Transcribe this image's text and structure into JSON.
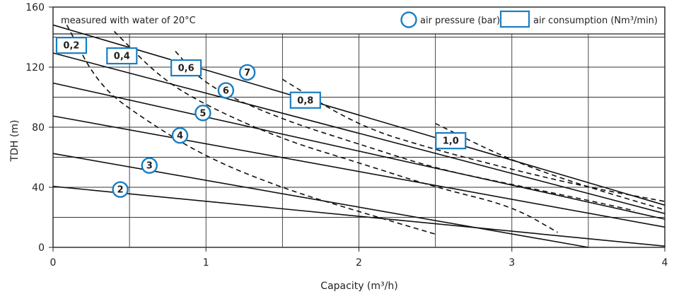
{
  "chart_data": {
    "type": "line",
    "note": "measured with water of 20°C",
    "xlabel": "Capacity (m³/h)",
    "ylabel": "TDH (m)",
    "xlim": [
      0,
      4
    ],
    "ylim": [
      0,
      160
    ],
    "xticks": [
      "0",
      "1",
      "2",
      "3",
      "4"
    ],
    "yticks": [
      "0",
      "40",
      "80",
      "120",
      "160"
    ],
    "grid": true,
    "legend": [
      {
        "shape": "circle",
        "label": "air pressure (bar)"
      },
      {
        "shape": "box",
        "label": "air consumption (Nm³/min)"
      }
    ],
    "series_pressure": [
      {
        "label": "2",
        "x": [
          0,
          4.0
        ],
        "y": [
          40.6,
          0.8
        ],
        "label_at": [
          0.44,
          38.5
        ]
      },
      {
        "label": "3",
        "x": [
          0,
          3.5
        ],
        "y": [
          62.5,
          0
        ],
        "label_at": [
          0.63,
          54.5
        ]
      },
      {
        "label": "4",
        "x": [
          0,
          4.0
        ],
        "y": [
          87.5,
          13.5
        ],
        "label_at": [
          0.83,
          74.5
        ]
      },
      {
        "label": "5",
        "x": [
          0,
          4.0
        ],
        "y": [
          109.4,
          18.8
        ],
        "label_at": [
          0.98,
          89.5
        ]
      },
      {
        "label": "6",
        "x": [
          0,
          4.0
        ],
        "y": [
          129.4,
          22.5
        ],
        "label_at": [
          1.13,
          104.5
        ]
      },
      {
        "label": "7",
        "x": [
          0,
          4.0
        ],
        "y": [
          148.1,
          28.1
        ],
        "label_at": [
          1.27,
          116.5
        ]
      }
    ],
    "series_air": [
      {
        "label": "0,2",
        "x": [
          0.09,
          0.3,
          0.6,
          1.0,
          1.5,
          2.0,
          2.5
        ],
        "y": [
          148.1,
          107.5,
          85.0,
          60.0,
          39.4,
          23.8,
          8.8
        ],
        "label_at": [
          0.12,
          134.5
        ]
      },
      {
        "label": "0,4",
        "x": [
          0.4,
          0.7,
          1.0,
          1.5,
          2.0,
          2.5,
          3.0,
          3.3
        ],
        "y": [
          143.8,
          113.1,
          94.4,
          71.9,
          56.3,
          40.0,
          27.5,
          10.0
        ],
        "label_at": [
          0.45,
          127.5
        ]
      },
      {
        "label": "0,6",
        "x": [
          0.8,
          1.0,
          1.5,
          2.0,
          2.5,
          3.0,
          3.5,
          3.8
        ],
        "y": [
          130.6,
          107.5,
          85.0,
          68.8,
          52.5,
          41.9,
          31.3,
          24.4
        ],
        "label_at": [
          0.87,
          119.5
        ]
      },
      {
        "label": "0,8",
        "x": [
          1.5,
          2.0,
          2.5,
          3.0,
          3.5,
          4.0
        ],
        "y": [
          111.9,
          80.6,
          65.0,
          51.9,
          40.0,
          30.6
        ],
        "label_at": [
          1.65,
          98.0
        ]
      },
      {
        "label": "1,0",
        "x": [
          2.5,
          3.0,
          3.5,
          4.0
        ],
        "y": [
          82.5,
          57.5,
          40.0,
          25.0
        ],
        "label_at": [
          2.6,
          71.0
        ]
      }
    ]
  }
}
